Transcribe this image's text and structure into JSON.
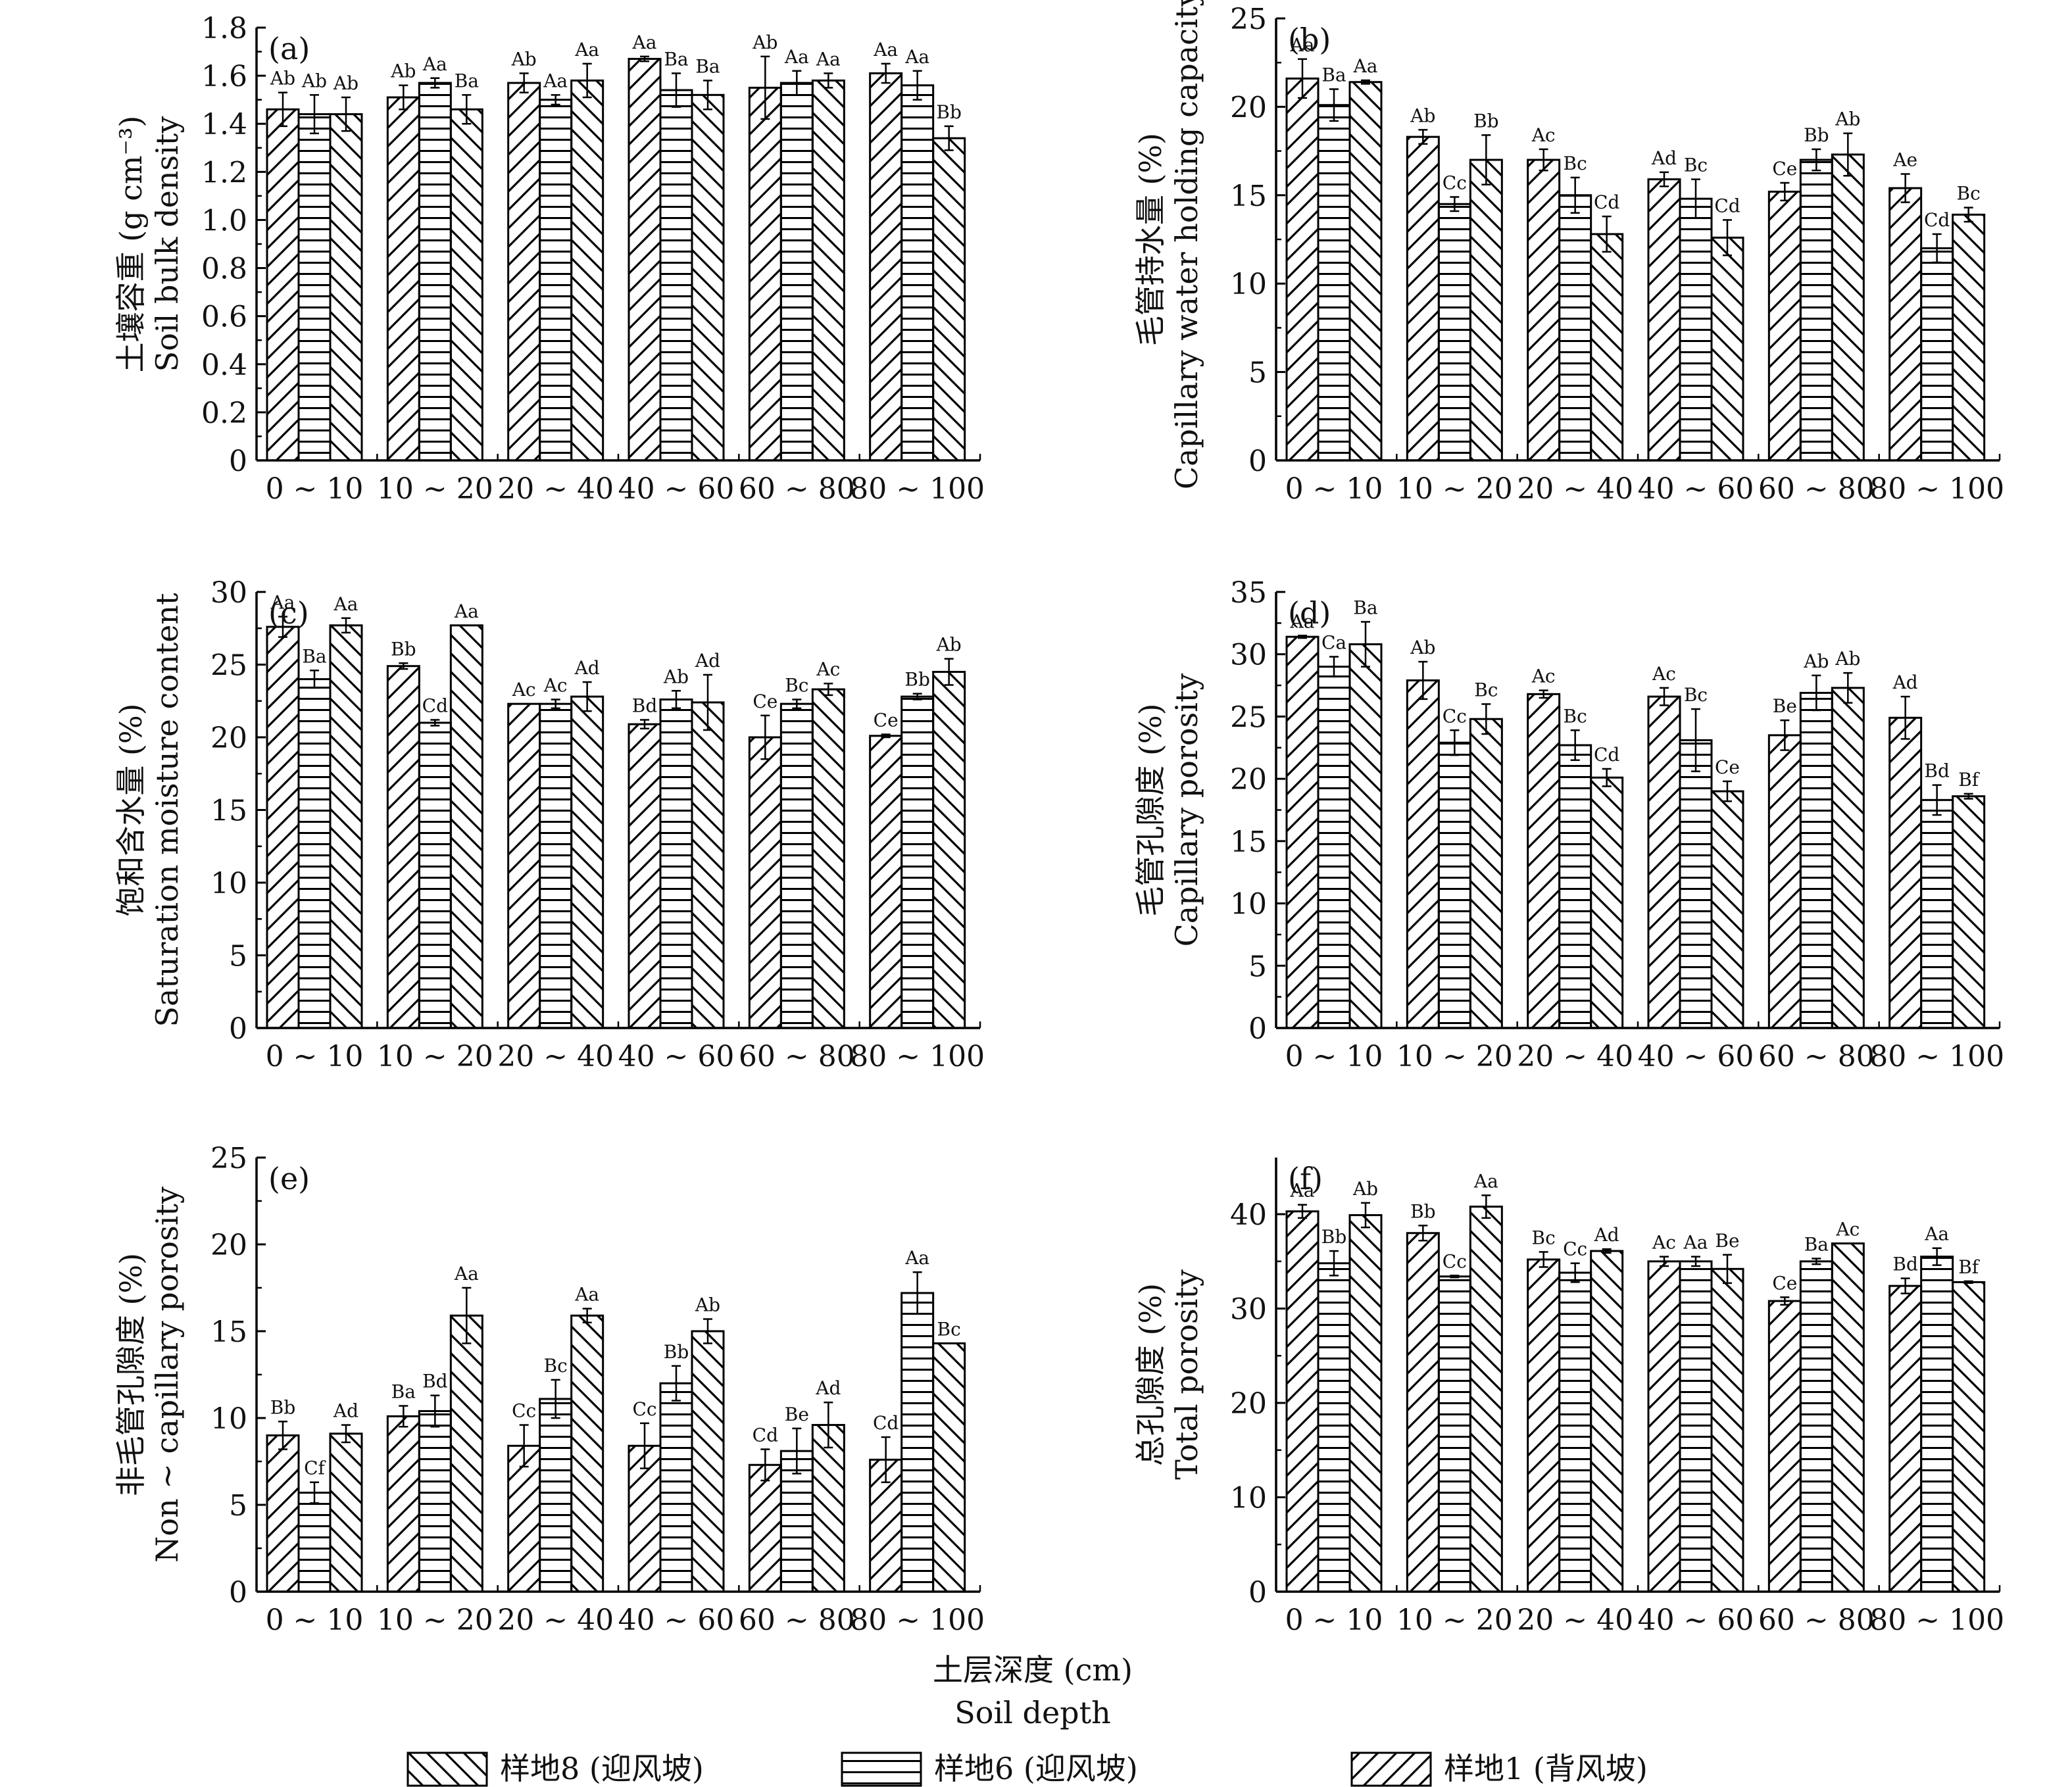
{
  "figure": {
    "shared_xlabel_cn": "土层深度 (cm)",
    "shared_xlabel_en": "Soil depth",
    "legend": [
      {
        "name": "样地8 (迎风坡)",
        "pattern": "backslash"
      },
      {
        "name": "样地6 (迎风坡)",
        "pattern": "horizontal"
      },
      {
        "name": "样地1 (背风坡)",
        "pattern": "slash"
      }
    ]
  },
  "chart_data": [
    {
      "type": "bar",
      "panel_label": "(a)",
      "ylabel_cn": "土壤容重 (g cm⁻³)",
      "ylabel_en": "Soil bulk density",
      "categories": [
        "0 ~ 10",
        "10 ~ 20",
        "20 ~ 40",
        "40 ~ 60",
        "60 ~ 80",
        "80 ~ 100"
      ],
      "ylim": [
        0,
        1.8
      ],
      "yticks": [
        "0",
        "0.2",
        "0.4",
        "0.6",
        "0.8",
        "1.0",
        "1.2",
        "1.4",
        "1.6",
        "1.8"
      ],
      "series": [
        {
          "name": "样地1 (背风坡)",
          "values": [
            1.46,
            1.51,
            1.57,
            1.67,
            1.55,
            1.61
          ],
          "errors": [
            0.07,
            0.05,
            0.04,
            0.01,
            0.13,
            0.04
          ],
          "labels": [
            "Ab",
            "Ab",
            "Ab",
            "Aa",
            "Ab",
            "Aa"
          ]
        },
        {
          "name": "样地6 (迎风坡)",
          "values": [
            1.44,
            1.57,
            1.5,
            1.54,
            1.57,
            1.56
          ],
          "errors": [
            0.08,
            0.02,
            0.02,
            0.07,
            0.05,
            0.06
          ],
          "labels": [
            "Ab",
            "Aa",
            "Aa",
            "Ba",
            "Aa",
            "Aa"
          ]
        },
        {
          "name": "样地8 (迎风坡)",
          "values": [
            1.44,
            1.46,
            1.58,
            1.52,
            1.58,
            1.34
          ],
          "errors": [
            0.07,
            0.06,
            0.07,
            0.06,
            0.03,
            0.05
          ],
          "labels": [
            "Ab",
            "Ba",
            "Aa",
            "Ba",
            "Aa",
            "Bb"
          ]
        }
      ]
    },
    {
      "type": "bar",
      "panel_label": "(b)",
      "ylabel_cn": "毛管持水量 (%)",
      "ylabel_en": "Capillary water holding capacity",
      "categories": [
        "0 ~ 10",
        "10 ~ 20",
        "20 ~ 40",
        "40 ~ 60",
        "60 ~ 80",
        "80 ~ 100"
      ],
      "ylim": [
        0,
        25
      ],
      "yticks": [
        "0",
        "5",
        "10",
        "15",
        "20",
        "25"
      ],
      "series": [
        {
          "name": "样地1 (背风坡)",
          "values": [
            21.6,
            18.3,
            17.0,
            15.9,
            15.2,
            15.4
          ],
          "errors": [
            1.1,
            0.4,
            0.6,
            0.4,
            0.5,
            0.8
          ],
          "labels": [
            "Aa",
            "Ab",
            "Ac",
            "Ad",
            "Ce",
            "Ae"
          ]
        },
        {
          "name": "样地6 (迎风坡)",
          "values": [
            20.1,
            14.5,
            15.0,
            14.8,
            17.0,
            12.0
          ],
          "errors": [
            0.9,
            0.4,
            1.0,
            1.1,
            0.6,
            0.8
          ],
          "labels": [
            "Ba",
            "Cc",
            "Bc",
            "Bc",
            "Bb",
            "Cd"
          ]
        },
        {
          "name": "样地8 (迎风坡)",
          "values": [
            21.4,
            17.0,
            12.8,
            12.6,
            17.3,
            13.9
          ],
          "errors": [
            0.1,
            1.4,
            1.0,
            1.0,
            1.2,
            0.4
          ],
          "labels": [
            "Aa",
            "Bb",
            "Cd",
            "Cd",
            "Ab",
            "Bc"
          ]
        }
      ]
    },
    {
      "type": "bar",
      "panel_label": "(c)",
      "ylabel_cn": "饱和含水量 (%)",
      "ylabel_en": "Saturation moisture content",
      "categories": [
        "0 ~ 10",
        "10 ~ 20",
        "20 ~ 40",
        "40 ~ 60",
        "60 ~ 80",
        "80 ~ 100"
      ],
      "ylim": [
        0,
        30
      ],
      "yticks": [
        "0",
        "5",
        "10",
        "15",
        "20",
        "25",
        "30"
      ],
      "series": [
        {
          "name": "样地1 (背风坡)",
          "values": [
            27.6,
            24.9,
            22.3,
            20.9,
            20.0,
            20.1
          ],
          "errors": [
            0.7,
            0.2,
            0.0,
            0.3,
            1.5,
            0.1
          ],
          "labels": [
            "Aa",
            "Bb",
            "Ac",
            "Bd",
            "Ce",
            "Ce"
          ]
        },
        {
          "name": "样地6 (迎风坡)",
          "values": [
            24.0,
            21.0,
            22.3,
            22.6,
            22.3,
            22.8
          ],
          "errors": [
            0.6,
            0.2,
            0.3,
            0.6,
            0.3,
            0.2
          ],
          "labels": [
            "Ba",
            "Cd",
            "Ac",
            "Ab",
            "Bc",
            "Bb"
          ]
        },
        {
          "name": "样地8 (迎风坡)",
          "values": [
            27.7,
            27.7,
            22.8,
            22.4,
            23.3,
            24.5
          ],
          "errors": [
            0.5,
            0.0,
            1.0,
            1.9,
            0.4,
            0.9
          ],
          "labels": [
            "Aa",
            "Aa",
            "Ad",
            "Ad",
            "Ac",
            "Ab"
          ]
        }
      ]
    },
    {
      "type": "bar",
      "panel_label": "(d)",
      "ylabel_cn": "毛管孔隙度 (%)",
      "ylabel_en": "Capillary porosity",
      "categories": [
        "0 ~ 10",
        "10 ~ 20",
        "20 ~ 40",
        "40 ~ 60",
        "60 ~ 80",
        "80 ~ 100"
      ],
      "ylim": [
        0,
        35
      ],
      "yticks": [
        "0",
        "5",
        "10",
        "15",
        "20",
        "25",
        "30",
        "35"
      ],
      "series": [
        {
          "name": "样地1 (背风坡)",
          "values": [
            31.4,
            27.9,
            26.8,
            26.6,
            23.5,
            24.9
          ],
          "errors": [
            0.1,
            1.5,
            0.3,
            0.7,
            1.2,
            1.7
          ],
          "labels": [
            "Aa",
            "Ab",
            "Ac",
            "Ac",
            "Be",
            "Ad"
          ]
        },
        {
          "name": "样地6 (迎风坡)",
          "values": [
            29.0,
            22.9,
            22.7,
            23.1,
            26.9,
            18.3
          ],
          "errors": [
            0.8,
            1.0,
            1.2,
            2.5,
            1.4,
            1.2
          ],
          "labels": [
            "Ca",
            "Cc",
            "Bc",
            "Bc",
            "Ab",
            "Bd"
          ]
        },
        {
          "name": "样地8 (迎风坡)",
          "values": [
            30.8,
            24.8,
            20.1,
            19.0,
            27.3,
            18.6
          ],
          "errors": [
            1.8,
            1.2,
            0.7,
            0.8,
            1.2,
            0.2
          ],
          "labels": [
            "Ba",
            "Bc",
            "Cd",
            "Ce",
            "Ab",
            "Bf"
          ]
        }
      ]
    },
    {
      "type": "bar",
      "panel_label": "(e)",
      "ylabel_cn": "非毛管孔隙度 (%)",
      "ylabel_en": "Non ~ capillary porosity",
      "categories": [
        "0 ~ 10",
        "10 ~ 20",
        "20 ~ 40",
        "40 ~ 60",
        "60 ~ 80",
        "80 ~ 100"
      ],
      "ylim": [
        0,
        25
      ],
      "yticks": [
        "0",
        "5",
        "10",
        "15",
        "20",
        "25"
      ],
      "series": [
        {
          "name": "样地1 (背风坡)",
          "values": [
            9.0,
            10.1,
            8.4,
            8.4,
            7.3,
            7.6
          ],
          "errors": [
            0.8,
            0.6,
            1.2,
            1.3,
            0.9,
            1.3
          ],
          "labels": [
            "Bb",
            "Ba",
            "Cc",
            "Cc",
            "Cd",
            "Cd"
          ]
        },
        {
          "name": "样地6 (迎风坡)",
          "values": [
            5.7,
            10.4,
            11.1,
            12.0,
            8.1,
            17.2
          ],
          "errors": [
            0.6,
            0.9,
            1.1,
            1.0,
            1.3,
            1.2
          ],
          "labels": [
            "Cf",
            "Bd",
            "Bc",
            "Bb",
            "Be",
            "Aa"
          ]
        },
        {
          "name": "样地8 (迎风坡)",
          "values": [
            9.1,
            15.9,
            15.9,
            15.0,
            9.6,
            14.3
          ],
          "errors": [
            0.5,
            1.6,
            0.4,
            0.7,
            1.3,
            0.0
          ],
          "labels": [
            "Ad",
            "Aa",
            "Aa",
            "Ab",
            "Ad",
            "Bc"
          ]
        }
      ]
    },
    {
      "type": "bar",
      "panel_label": "(f)",
      "ylabel_cn": "总孔隙度 (%)",
      "ylabel_en": "Total porosity",
      "categories": [
        "0 ~ 10",
        "10 ~ 20",
        "20 ~ 40",
        "40 ~ 60",
        "60 ~ 80",
        "80 ~ 100"
      ],
      "ylim": [
        0,
        46
      ],
      "yticks": [
        "0",
        "10",
        "20",
        "30",
        "40"
      ],
      "series": [
        {
          "name": "样地1 (背风坡)",
          "values": [
            40.3,
            38.0,
            35.2,
            35.0,
            30.8,
            32.4
          ],
          "errors": [
            0.7,
            0.8,
            0.8,
            0.5,
            0.4,
            0.8
          ],
          "labels": [
            "Aa",
            "Bb",
            "Bc",
            "Ac",
            "Ce",
            "Bd"
          ]
        },
        {
          "name": "样地6 (迎风坡)",
          "values": [
            34.8,
            33.4,
            33.8,
            35.0,
            35.0,
            35.5
          ],
          "errors": [
            1.3,
            0.1,
            1.0,
            0.5,
            0.3,
            0.9
          ],
          "labels": [
            "Bb",
            "Cc",
            "Cc",
            "Aa",
            "Ba",
            "Aa"
          ]
        },
        {
          "name": "样地8 (迎风坡)",
          "values": [
            39.9,
            40.8,
            36.1,
            34.2,
            36.9,
            32.8
          ],
          "errors": [
            1.3,
            1.2,
            0.2,
            1.5,
            0.0,
            0.1
          ],
          "labels": [
            "Ab",
            "Aa",
            "Ad",
            "Be",
            "Ac",
            "Bf"
          ]
        }
      ]
    }
  ]
}
